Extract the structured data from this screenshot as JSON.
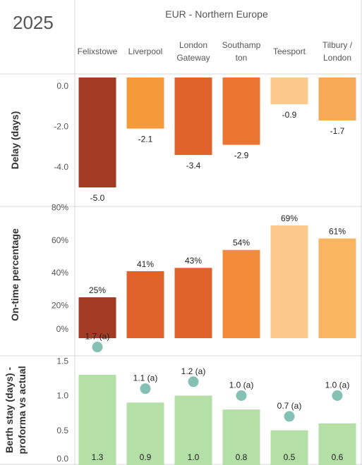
{
  "header": {
    "year": "2025",
    "region": "EUR - Northern Europe"
  },
  "categories": [
    [
      "Felixstowe"
    ],
    [
      "Liverpool"
    ],
    [
      "London",
      "Gateway"
    ],
    [
      "Southamp",
      "ton"
    ],
    [
      "Teesport"
    ],
    [
      "Tilbury /",
      "London"
    ]
  ],
  "chart_data": [
    {
      "type": "bar",
      "ylabel": "Delay (days)",
      "ylim": [
        -5.5,
        0
      ],
      "yticks": [
        "0.0",
        "-2.0",
        "-4.0"
      ],
      "values": [
        -5.0,
        -2.1,
        -3.4,
        -2.9,
        -0.9,
        -1.7
      ],
      "value_labels": [
        "-5.0",
        "-2.1",
        "-3.4",
        "-2.9",
        "-0.9",
        "-1.7"
      ],
      "colors": [
        "#a23b24",
        "#f5993b",
        "#e0632b",
        "#ea7430",
        "#fdc88b",
        "#f7aa55"
      ]
    },
    {
      "type": "bar",
      "ylabel": "On-time percentage",
      "ylim": [
        0,
        80
      ],
      "yticks": [
        "80%",
        "60%",
        "40%",
        "20%",
        "0%"
      ],
      "values": [
        25,
        41,
        43,
        54,
        69,
        61
      ],
      "value_labels": [
        "25%",
        "41%",
        "43%",
        "54%",
        "69%",
        "61%"
      ],
      "colors": [
        "#a23b24",
        "#e0632b",
        "#e0632b",
        "#f28c38",
        "#fdc88b",
        "#f9b560"
      ]
    },
    {
      "type": "bar",
      "ylabel": [
        "Berth stay (days) -",
        "proforma vs actual"
      ],
      "ylim": [
        0,
        1.7
      ],
      "yticks": [
        "1.5",
        "1.0",
        "0.5",
        "0.0"
      ],
      "bar_values": [
        1.3,
        0.9,
        1.0,
        0.8,
        0.5,
        0.6
      ],
      "bar_labels": [
        "1.3",
        "0.9",
        "1.0",
        "0.8",
        "0.5",
        "0.6"
      ],
      "marker_values": [
        1.7,
        1.1,
        1.2,
        1.0,
        0.7,
        1.0
      ],
      "marker_labels": [
        "1.7 (a)",
        "1.1 (a)",
        "1.2 (a)",
        "1.0 (a)",
        "0.7 (a)",
        "1.0 (a)"
      ],
      "bar_color": "#b4dfa6",
      "marker_color": "#84c0b3"
    }
  ]
}
